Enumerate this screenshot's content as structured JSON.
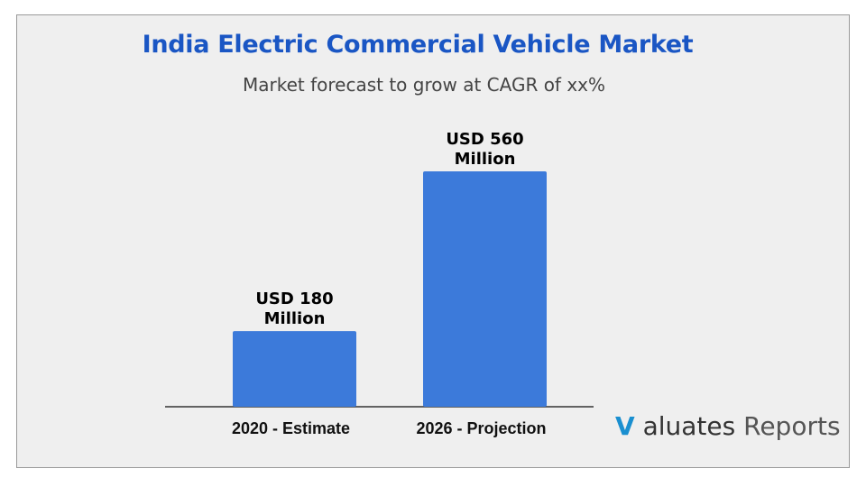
{
  "title": "India Electric Commercial Vehicle Market",
  "subtitle": "Market forecast to grow at CAGR of xx%",
  "logo": {
    "mark": "V",
    "brand": "aluates",
    "suffix": "Reports"
  },
  "colors": {
    "bar": "#3c7ada",
    "title": "#1a56c4",
    "background": "#efefef"
  },
  "chart_data": {
    "type": "bar",
    "title": "India Electric Commercial Vehicle Market",
    "subtitle": "Market forecast to grow at CAGR of xx%",
    "categories": [
      "2020 - Estimate",
      "2026 - Projection"
    ],
    "values": [
      180,
      560
    ],
    "data_labels": [
      [
        "USD 180",
        "Million"
      ],
      [
        "USD 560",
        "Million"
      ]
    ],
    "unit": "USD Million",
    "ylim": [
      0,
      600
    ],
    "grid": false,
    "axis_visible": false
  }
}
